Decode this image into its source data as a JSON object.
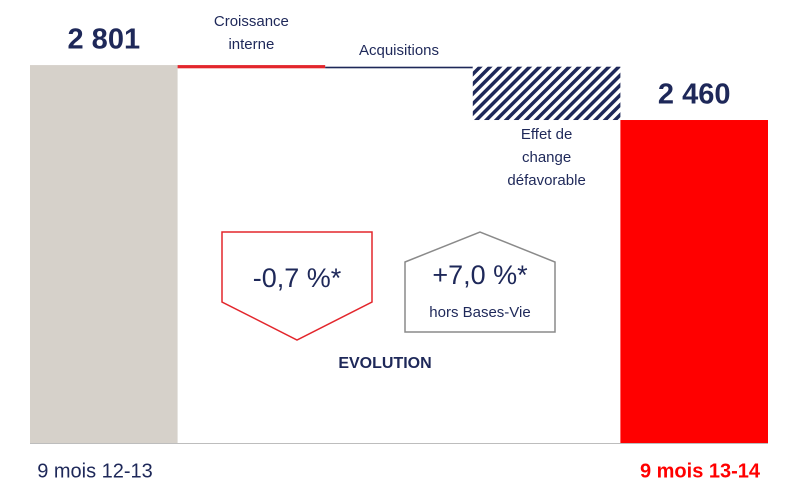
{
  "chart_data": {
    "type": "waterfall",
    "categories": [
      "9 mois 12-13",
      "Croissance\ninterne",
      "Acquisitions",
      "Effet de\nchange\ndéfavorable",
      "9 mois 13-14"
    ],
    "values": [
      2801,
      -20,
      10,
      -331,
      2460
    ],
    "value_labels": [
      "2 801",
      null,
      null,
      null,
      "2 460"
    ],
    "measures": [
      "absolute",
      "relative",
      "relative",
      "relative",
      "total"
    ],
    "colors": [
      "#d6d1ca",
      "#e3262c",
      "#1e2859",
      "#1e2859",
      "#ff0000"
    ],
    "patterns": [
      null,
      null,
      null,
      "hatch",
      null
    ],
    "ylim": [
      455,
      3205
    ],
    "annotations": {
      "internal": "-0,7 %*",
      "reported": "+7,0 %*",
      "reported_note": "hors Bases-Vie",
      "caption": "EVOLUTION"
    }
  }
}
